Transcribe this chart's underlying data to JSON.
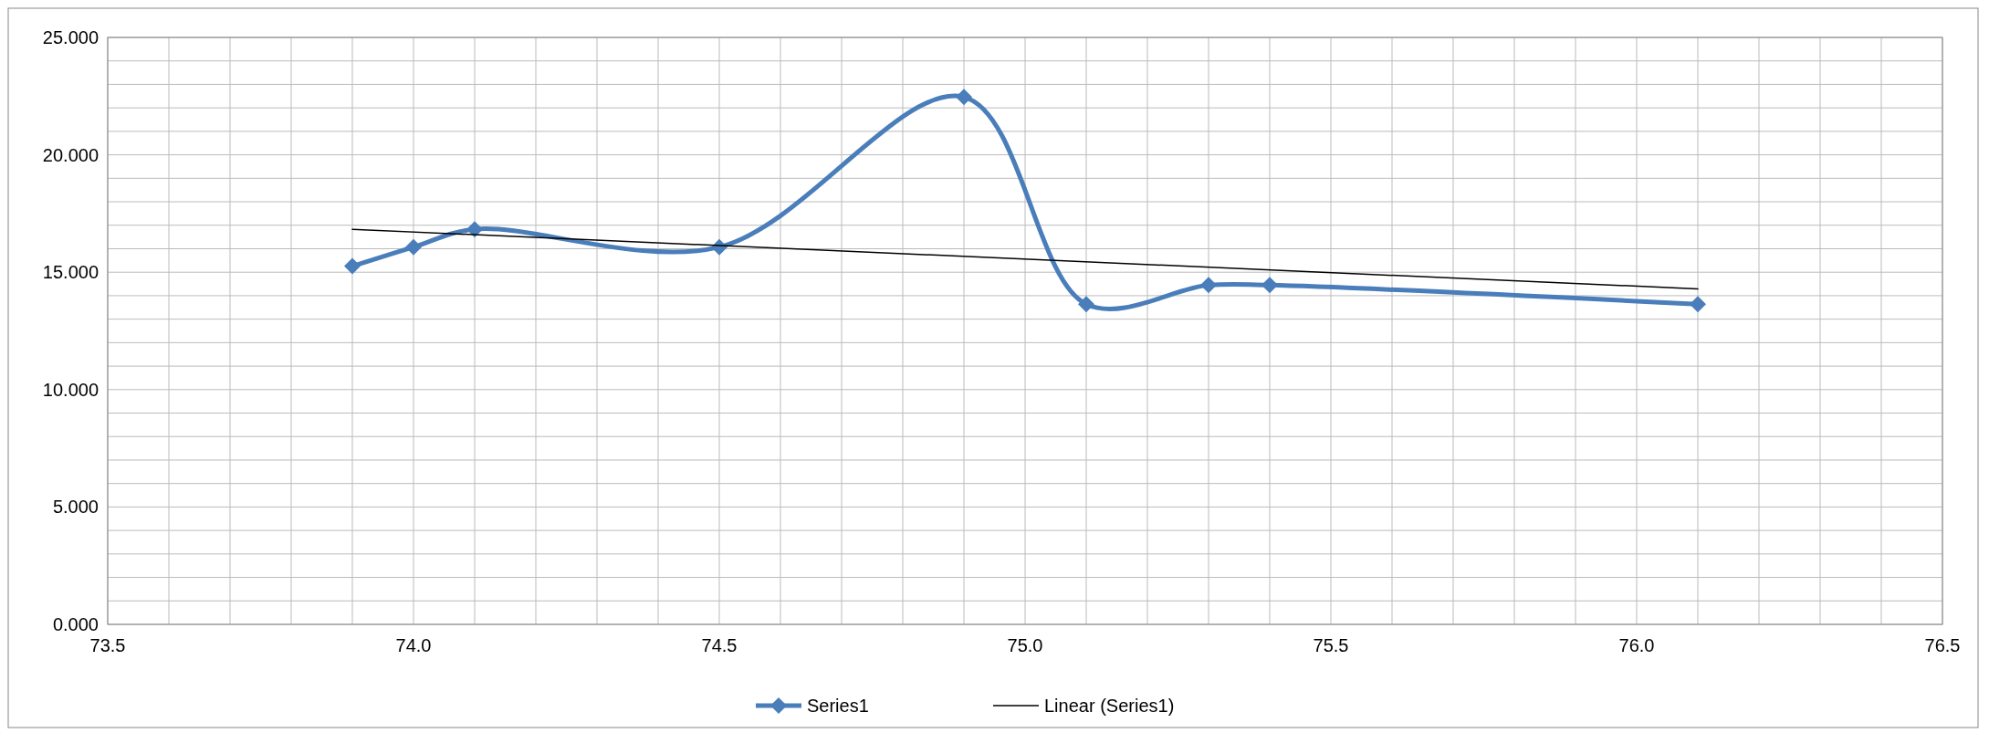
{
  "chart_data": {
    "type": "line",
    "x": [
      73.9,
      74.0,
      74.1,
      74.5,
      74.9,
      75.1,
      75.3,
      75.4,
      76.1
    ],
    "series": [
      {
        "name": "Series1",
        "color": "#4a7ebb",
        "marker": "diamond",
        "values": [
          15.26,
          16.07,
          16.83,
          16.07,
          22.46,
          13.64,
          14.45,
          14.45,
          13.64
        ]
      },
      {
        "name": "Linear (Series1)",
        "color": "#000000",
        "marker": "none",
        "x": [
          73.9,
          76.1
        ],
        "values": [
          16.83,
          14.29
        ]
      }
    ],
    "xlim": [
      73.5,
      76.5
    ],
    "ylim": [
      0,
      25
    ],
    "xticks": [
      {
        "value": 73.5,
        "label": "73.5"
      },
      {
        "value": 73.6,
        "label": null
      },
      {
        "value": 73.7,
        "label": null
      },
      {
        "value": 73.8,
        "label": null
      },
      {
        "value": 73.9,
        "label": null
      },
      {
        "value": 74.0,
        "label": "74.0"
      },
      {
        "value": 74.1,
        "label": null
      },
      {
        "value": 74.2,
        "label": null
      },
      {
        "value": 74.3,
        "label": null
      },
      {
        "value": 74.4,
        "label": null
      },
      {
        "value": 74.5,
        "label": "74.5"
      },
      {
        "value": 74.6,
        "label": null
      },
      {
        "value": 74.7,
        "label": null
      },
      {
        "value": 74.8,
        "label": null
      },
      {
        "value": 74.9,
        "label": null
      },
      {
        "value": 75.0,
        "label": "75.0"
      },
      {
        "value": 75.1,
        "label": null
      },
      {
        "value": 75.2,
        "label": null
      },
      {
        "value": 75.3,
        "label": null
      },
      {
        "value": 75.4,
        "label": null
      },
      {
        "value": 75.5,
        "label": "75.5"
      },
      {
        "value": 75.6,
        "label": null
      },
      {
        "value": 75.7,
        "label": null
      },
      {
        "value": 75.8,
        "label": null
      },
      {
        "value": 75.9,
        "label": null
      },
      {
        "value": 76.0,
        "label": "76.0"
      },
      {
        "value": 76.1,
        "label": null
      },
      {
        "value": 76.2,
        "label": null
      },
      {
        "value": 76.3,
        "label": null
      },
      {
        "value": 76.4,
        "label": null
      },
      {
        "value": 76.5,
        "label": "76.5"
      }
    ],
    "yticks": [
      {
        "value": 0,
        "label": "0.000"
      },
      {
        "value": 1,
        "label": null
      },
      {
        "value": 2,
        "label": null
      },
      {
        "value": 3,
        "label": null
      },
      {
        "value": 4,
        "label": null
      },
      {
        "value": 5,
        "label": "5.000"
      },
      {
        "value": 6,
        "label": null
      },
      {
        "value": 7,
        "label": null
      },
      {
        "value": 8,
        "label": null
      },
      {
        "value": 9,
        "label": null
      },
      {
        "value": 10,
        "label": "10.000"
      },
      {
        "value": 11,
        "label": null
      },
      {
        "value": 12,
        "label": null
      },
      {
        "value": 13,
        "label": null
      },
      {
        "value": 14,
        "label": null
      },
      {
        "value": 15,
        "label": "15.000"
      },
      {
        "value": 16,
        "label": null
      },
      {
        "value": 17,
        "label": null
      },
      {
        "value": 18,
        "label": null
      },
      {
        "value": 19,
        "label": null
      },
      {
        "value": 20,
        "label": "20.000"
      },
      {
        "value": 21,
        "label": null
      },
      {
        "value": 22,
        "label": null
      },
      {
        "value": 23,
        "label": null
      },
      {
        "value": 24,
        "label": null
      },
      {
        "value": 25,
        "label": "25.000"
      }
    ],
    "grid": true,
    "legend": "bottom",
    "line_style": "solid"
  }
}
